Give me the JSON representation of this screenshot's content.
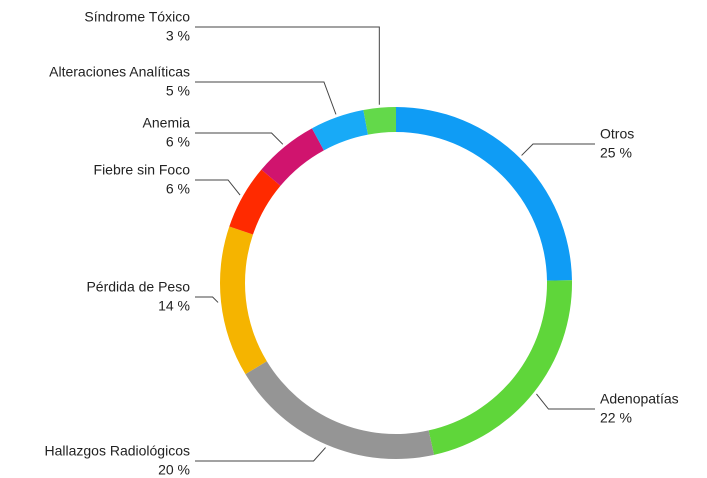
{
  "chart_data": {
    "type": "donut",
    "categories": [
      "Otros",
      "Adenopatías",
      "Hallazgos Radiológicos",
      "Pérdida de Peso",
      "Fiebre sin Foco",
      "Anemia",
      "Alteraciones Analíticas",
      "Síndrome Tóxico"
    ],
    "values": [
      25,
      22,
      20,
      14,
      6,
      6,
      5,
      3
    ],
    "value_labels": [
      "25 %",
      "22 %",
      "20 %",
      "14 %",
      "6 %",
      "6 %",
      "5 %",
      "3 %"
    ],
    "colors": [
      "#0f9cf5",
      "#5fd63a",
      "#959595",
      "#f5b400",
      "#ff2a00",
      "#d0146e",
      "#18aaf7",
      "#63d94a"
    ]
  }
}
